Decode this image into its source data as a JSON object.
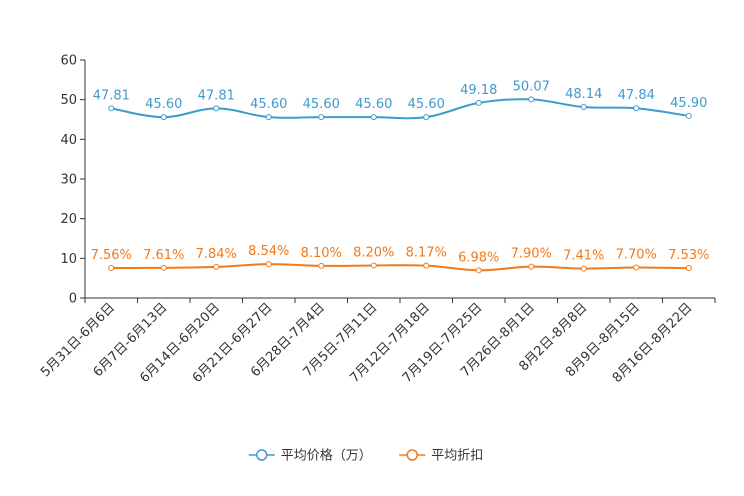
{
  "chart_data": {
    "type": "line",
    "title": "",
    "xlabel": "",
    "ylabel": "",
    "ylim": [
      0,
      60
    ],
    "yticks": [
      "0",
      "10",
      "20",
      "30",
      "40",
      "50",
      "60"
    ],
    "categories": [
      "5月31日-6月6日",
      "6月7日-6月13日",
      "6月14日-6月20日",
      "6月21日-6月27日",
      "6月28日-7月4日",
      "7月5日-7月11日",
      "7月12日-7月18日",
      "7月19日-7月25日",
      "7月26日-8月1日",
      "8月2日-8月8日",
      "8月9日-8月15日",
      "8月16日-8月22日"
    ],
    "series": [
      {
        "name": "平均价格（万）",
        "color": "#3e9bcb",
        "values": [
          47.81,
          45.6,
          47.81,
          45.6,
          45.6,
          45.6,
          45.6,
          49.18,
          50.07,
          48.14,
          47.84,
          45.9
        ],
        "labels": [
          "47.81",
          "45.60",
          "47.81",
          "45.60",
          "45.60",
          "45.60",
          "45.60",
          "49.18",
          "50.07",
          "48.14",
          "47.84",
          "45.90"
        ]
      },
      {
        "name": "平均折扣",
        "color": "#f07a1c",
        "values": [
          7.56,
          7.61,
          7.84,
          8.54,
          8.1,
          8.2,
          8.17,
          6.98,
          7.9,
          7.41,
          7.7,
          7.53
        ],
        "labels": [
          "7.56%",
          "7.61%",
          "7.84%",
          "8.54%",
          "8.10%",
          "8.20%",
          "8.17%",
          "6.98%",
          "7.90%",
          "7.41%",
          "7.70%",
          "7.53%"
        ]
      }
    ],
    "legend_position": "bottom-center"
  }
}
